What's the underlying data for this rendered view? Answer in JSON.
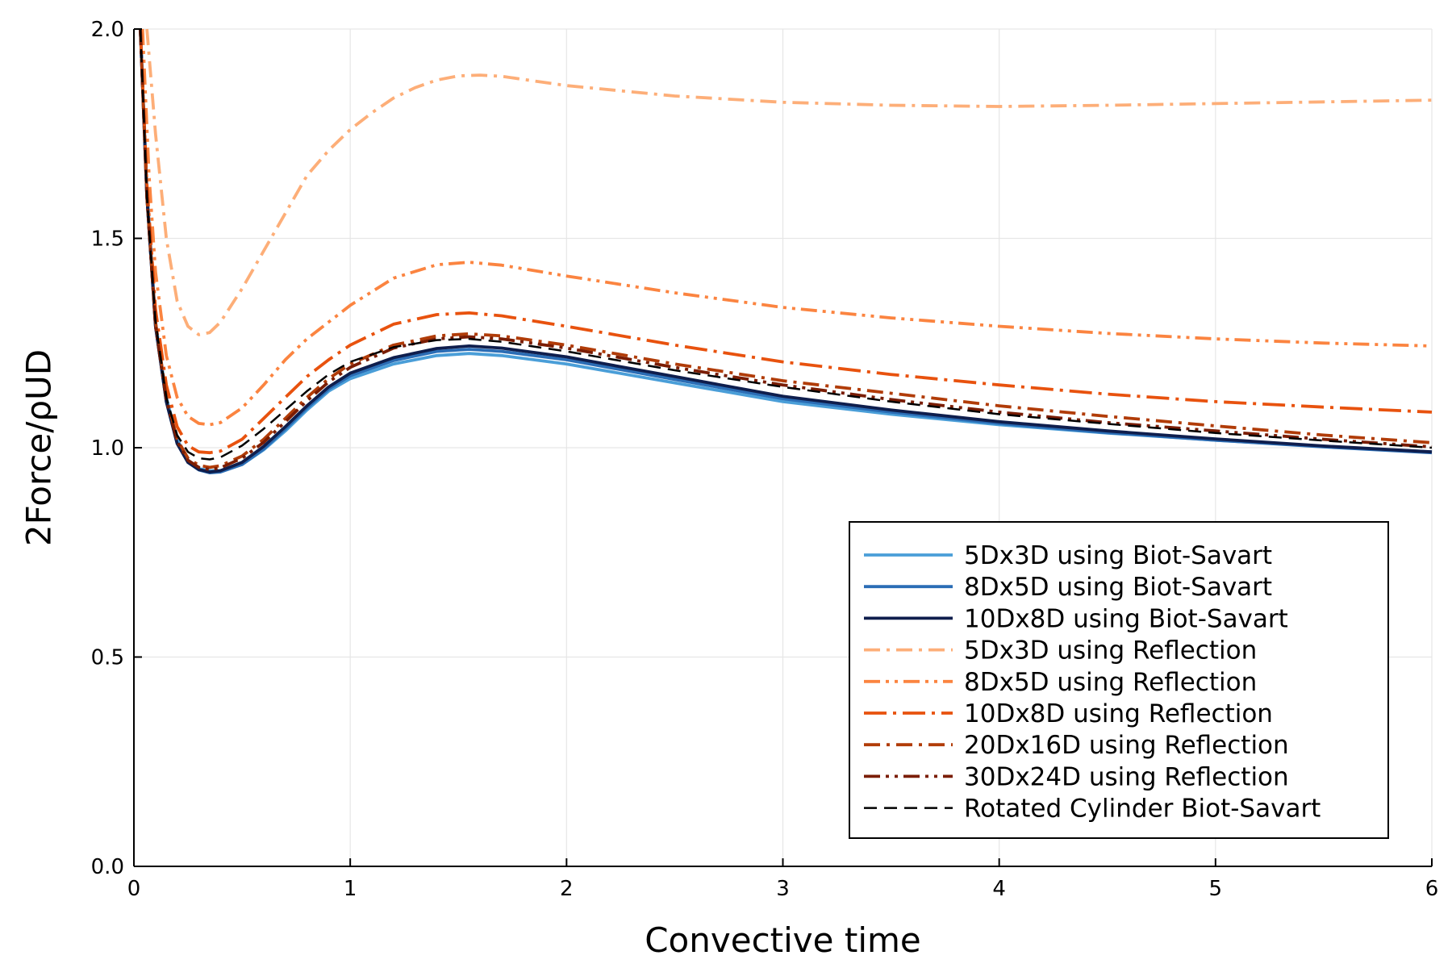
{
  "chart_data": {
    "type": "line",
    "title": "",
    "xlabel": "Convective time",
    "ylabel": "2Force/ρUD",
    "xlim": [
      0,
      6
    ],
    "ylim": [
      0,
      2
    ],
    "xticks": [
      0,
      1,
      2,
      3,
      4,
      5,
      6
    ],
    "yticks": [
      0.0,
      0.5,
      1.0,
      1.5,
      2.0
    ],
    "xtick_labels": [
      "0",
      "1",
      "2",
      "3",
      "4",
      "5",
      "6"
    ],
    "ytick_labels": [
      "0.0",
      "0.5",
      "1.0",
      "1.5",
      "2.0"
    ],
    "grid": true,
    "legend_position": "bottom-right",
    "series": [
      {
        "name": "5Dx3D using Biot-Savart",
        "color": "#4a9ed8",
        "style": "solid",
        "x": [
          0.03,
          0.06,
          0.1,
          0.15,
          0.2,
          0.25,
          0.3,
          0.35,
          0.4,
          0.5,
          0.6,
          0.7,
          0.8,
          0.9,
          1.0,
          1.2,
          1.4,
          1.55,
          1.7,
          2.0,
          2.5,
          3.0,
          3.5,
          4.0,
          4.5,
          5.0,
          5.5,
          6.0
        ],
        "y": [
          2.0,
          1.62,
          1.3,
          1.12,
          1.02,
          0.97,
          0.95,
          0.945,
          0.945,
          0.96,
          0.995,
          1.04,
          1.09,
          1.135,
          1.165,
          1.2,
          1.22,
          1.225,
          1.22,
          1.2,
          1.155,
          1.11,
          1.08,
          1.055,
          1.035,
          1.018,
          1.003,
          0.99
        ]
      },
      {
        "name": "8Dx5D using Biot-Savart",
        "color": "#2b6db5",
        "style": "solid",
        "x": [
          0.03,
          0.06,
          0.1,
          0.15,
          0.2,
          0.25,
          0.3,
          0.35,
          0.4,
          0.5,
          0.6,
          0.7,
          0.8,
          0.9,
          1.0,
          1.2,
          1.4,
          1.55,
          1.7,
          2.0,
          2.5,
          3.0,
          3.5,
          4.0,
          4.5,
          5.0,
          5.5,
          6.0
        ],
        "y": [
          2.0,
          1.6,
          1.29,
          1.11,
          1.01,
          0.965,
          0.947,
          0.94,
          0.942,
          0.96,
          0.997,
          1.045,
          1.095,
          1.14,
          1.172,
          1.208,
          1.23,
          1.235,
          1.23,
          1.21,
          1.163,
          1.117,
          1.085,
          1.058,
          1.036,
          1.018,
          1.002,
          0.988
        ]
      },
      {
        "name": "10Dx8D using Biot-Savart",
        "color": "#0f1e4d",
        "style": "solid",
        "x": [
          0.03,
          0.06,
          0.1,
          0.15,
          0.2,
          0.25,
          0.3,
          0.35,
          0.4,
          0.5,
          0.6,
          0.7,
          0.8,
          0.9,
          1.0,
          1.2,
          1.4,
          1.55,
          1.7,
          2.0,
          2.5,
          3.0,
          3.5,
          4.0,
          4.5,
          5.0,
          5.5,
          6.0
        ],
        "y": [
          2.0,
          1.6,
          1.29,
          1.11,
          1.01,
          0.965,
          0.948,
          0.942,
          0.945,
          0.965,
          1.003,
          1.05,
          1.1,
          1.145,
          1.178,
          1.215,
          1.237,
          1.243,
          1.238,
          1.217,
          1.17,
          1.123,
          1.09,
          1.062,
          1.04,
          1.021,
          1.004,
          0.99
        ]
      },
      {
        "name": "5Dx3D using Reflection",
        "color": "#fdae78",
        "style": "dashdot",
        "x": [
          0.06,
          0.1,
          0.15,
          0.2,
          0.25,
          0.3,
          0.35,
          0.4,
          0.5,
          0.6,
          0.7,
          0.8,
          0.9,
          1.0,
          1.1,
          1.2,
          1.3,
          1.4,
          1.5,
          1.6,
          1.7,
          2.0,
          2.5,
          3.0,
          3.5,
          4.0,
          4.5,
          5.0,
          5.5,
          6.0
        ],
        "y": [
          2.0,
          1.75,
          1.5,
          1.35,
          1.29,
          1.27,
          1.275,
          1.3,
          1.38,
          1.47,
          1.56,
          1.65,
          1.71,
          1.76,
          1.8,
          1.835,
          1.86,
          1.878,
          1.888,
          1.89,
          1.887,
          1.865,
          1.84,
          1.825,
          1.818,
          1.815,
          1.818,
          1.822,
          1.826,
          1.83
        ]
      },
      {
        "name": "8Dx5D using Reflection",
        "color": "#fb8440",
        "style": "dashdotdot",
        "x": [
          0.04,
          0.07,
          0.1,
          0.15,
          0.2,
          0.25,
          0.3,
          0.35,
          0.4,
          0.5,
          0.6,
          0.7,
          0.8,
          0.9,
          1.0,
          1.2,
          1.4,
          1.55,
          1.7,
          2.0,
          2.5,
          3.0,
          3.5,
          4.0,
          4.5,
          5.0,
          5.5,
          6.0
        ],
        "y": [
          2.0,
          1.65,
          1.42,
          1.22,
          1.12,
          1.075,
          1.058,
          1.055,
          1.06,
          1.095,
          1.15,
          1.21,
          1.26,
          1.3,
          1.34,
          1.405,
          1.437,
          1.443,
          1.436,
          1.41,
          1.37,
          1.335,
          1.31,
          1.29,
          1.273,
          1.26,
          1.25,
          1.243
        ]
      },
      {
        "name": "10Dx8D using Reflection",
        "color": "#e8520e",
        "style": "dashlong",
        "x": [
          0.03,
          0.06,
          0.1,
          0.15,
          0.2,
          0.25,
          0.3,
          0.35,
          0.4,
          0.5,
          0.6,
          0.7,
          0.8,
          0.9,
          1.0,
          1.2,
          1.4,
          1.55,
          1.7,
          2.0,
          2.5,
          3.0,
          3.5,
          4.0,
          4.5,
          5.0,
          5.5,
          6.0
        ],
        "y": [
          2.0,
          1.63,
          1.33,
          1.15,
          1.05,
          1.005,
          0.99,
          0.988,
          0.992,
          1.02,
          1.07,
          1.12,
          1.17,
          1.21,
          1.245,
          1.295,
          1.318,
          1.322,
          1.315,
          1.29,
          1.245,
          1.205,
          1.175,
          1.15,
          1.128,
          1.11,
          1.097,
          1.085
        ]
      },
      {
        "name": "20Dx16D using Reflection",
        "color": "#b13c08",
        "style": "dashdot",
        "x": [
          0.03,
          0.06,
          0.1,
          0.15,
          0.2,
          0.25,
          0.3,
          0.35,
          0.4,
          0.5,
          0.6,
          0.7,
          0.8,
          0.9,
          1.0,
          1.2,
          1.4,
          1.55,
          1.7,
          2.0,
          2.5,
          3.0,
          3.5,
          4.0,
          4.5,
          5.0,
          5.5,
          6.0
        ],
        "y": [
          2.0,
          1.6,
          1.3,
          1.12,
          1.02,
          0.975,
          0.958,
          0.953,
          0.957,
          0.98,
          1.02,
          1.07,
          1.12,
          1.165,
          1.2,
          1.245,
          1.267,
          1.272,
          1.267,
          1.245,
          1.2,
          1.16,
          1.13,
          1.1,
          1.075,
          1.052,
          1.03,
          1.012
        ]
      },
      {
        "name": "30Dx24D using Reflection",
        "color": "#7a1d04",
        "style": "dashdotdot",
        "x": [
          0.03,
          0.06,
          0.1,
          0.15,
          0.2,
          0.25,
          0.3,
          0.35,
          0.4,
          0.5,
          0.6,
          0.7,
          0.8,
          0.9,
          1.0,
          1.2,
          1.4,
          1.55,
          1.7,
          2.0,
          2.5,
          3.0,
          3.5,
          4.0,
          4.5,
          5.0,
          5.5,
          6.0
        ],
        "y": [
          2.0,
          1.6,
          1.29,
          1.115,
          1.015,
          0.97,
          0.953,
          0.948,
          0.952,
          0.975,
          1.013,
          1.062,
          1.112,
          1.157,
          1.192,
          1.238,
          1.26,
          1.265,
          1.26,
          1.238,
          1.192,
          1.15,
          1.115,
          1.085,
          1.06,
          1.04,
          1.02,
          1.002
        ]
      },
      {
        "name": "Rotated Cylinder Biot-Savart",
        "color": "#000000",
        "style": "dashed",
        "x": [
          0.03,
          0.06,
          0.1,
          0.15,
          0.2,
          0.25,
          0.3,
          0.35,
          0.4,
          0.5,
          0.6,
          0.7,
          0.8,
          0.9,
          1.0,
          1.2,
          1.4,
          1.55,
          1.7,
          2.0,
          2.5,
          3.0,
          3.5,
          4.0,
          4.5,
          5.0,
          5.5,
          6.0
        ],
        "y": [
          2.0,
          1.6,
          1.3,
          1.12,
          1.03,
          0.99,
          0.975,
          0.972,
          0.977,
          1.005,
          1.045,
          1.09,
          1.135,
          1.175,
          1.205,
          1.24,
          1.257,
          1.26,
          1.253,
          1.23,
          1.185,
          1.145,
          1.11,
          1.08,
          1.057,
          1.035,
          1.017,
          1.0
        ]
      }
    ]
  }
}
